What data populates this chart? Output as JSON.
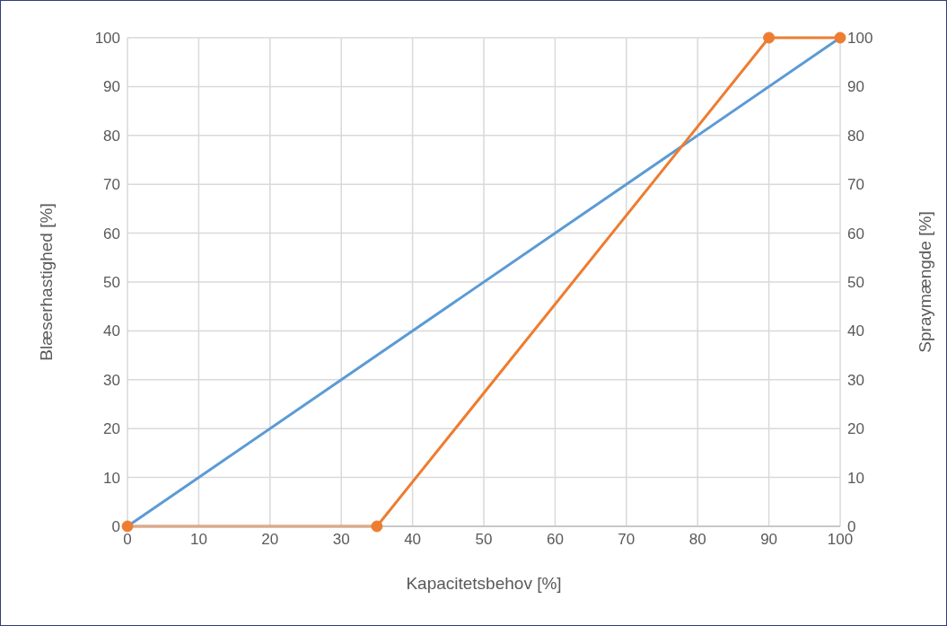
{
  "chart_data": {
    "type": "line",
    "xlabel": "Kapacitetsbehov [%]",
    "ylabel": "Blæserhastighed [%]",
    "y2label": "Spraymængde [%]",
    "xlim": [
      0,
      100
    ],
    "xticks": [
      0,
      10,
      20,
      30,
      40,
      50,
      60,
      70,
      80,
      90,
      100
    ],
    "ylim": [
      0,
      100
    ],
    "yticks": [
      0,
      10,
      20,
      30,
      40,
      50,
      60,
      70,
      80,
      90,
      100
    ],
    "y2lim": [
      0,
      100
    ],
    "y2ticks": [
      0,
      10,
      20,
      30,
      40,
      50,
      60,
      70,
      80,
      90,
      100
    ],
    "grid": true,
    "line_style": "solid",
    "series": [
      {
        "color": "#5b9bd5",
        "x": [
          0,
          100
        ],
        "values": [
          0,
          100
        ],
        "marker": "none"
      },
      {
        "color": "#ed7d31",
        "x": [
          0,
          35,
          90,
          100
        ],
        "values": [
          0,
          0,
          100,
          100
        ],
        "marker": "circle",
        "axis": "y2"
      }
    ]
  }
}
